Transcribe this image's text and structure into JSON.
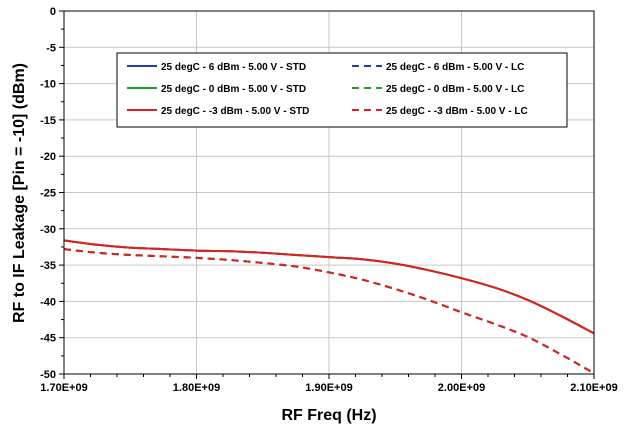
{
  "chart_data": {
    "type": "line",
    "xlabel": "RF Freq (Hz)",
    "ylabel": "RF to IF Leakage [Pin = -10] (dBm)",
    "xlim": [
      1700000000.0,
      2100000000.0
    ],
    "ylim": [
      -50,
      0
    ],
    "x_ticks": [
      {
        "value": 1700000000.0,
        "label": "1.70E+09"
      },
      {
        "value": 1800000000.0,
        "label": "1.80E+09"
      },
      {
        "value": 1900000000.0,
        "label": "1.90E+09"
      },
      {
        "value": 2000000000.0,
        "label": "2.00E+09"
      },
      {
        "value": 2100000000.0,
        "label": "2.10E+09"
      }
    ],
    "y_ticks": [
      {
        "value": 0,
        "label": "0"
      },
      {
        "value": -5,
        "label": "-5"
      },
      {
        "value": -10,
        "label": "-10"
      },
      {
        "value": -15,
        "label": "-15"
      },
      {
        "value": -20,
        "label": "-20"
      },
      {
        "value": -25,
        "label": "-25"
      },
      {
        "value": -30,
        "label": "-30"
      },
      {
        "value": -35,
        "label": "-35"
      },
      {
        "value": -40,
        "label": "-40"
      },
      {
        "value": -45,
        "label": "-45"
      },
      {
        "value": -50,
        "label": "-50"
      }
    ],
    "grid": true,
    "legend_position": "top-center",
    "x": [
      1700000000.0,
      1725000000.0,
      1750000000.0,
      1775000000.0,
      1800000000.0,
      1825000000.0,
      1850000000.0,
      1875000000.0,
      1900000000.0,
      1925000000.0,
      1950000000.0,
      1975000000.0,
      2000000000.0,
      2025000000.0,
      2050000000.0,
      2075000000.0,
      2100000000.0
    ],
    "series": [
      {
        "name": "25 degC - 6 dBm - 5.00 V - STD",
        "color": "#2040b0",
        "dash": "solid",
        "values": [
          -31.6,
          -32.2,
          -32.6,
          -32.8,
          -33.0,
          -33.1,
          -33.3,
          -33.6,
          -33.9,
          -34.2,
          -34.8,
          -35.7,
          -36.8,
          -38.1,
          -39.8,
          -42.0,
          -44.4
        ]
      },
      {
        "name": "25 degC - 6 dBm - 5.00 V - LC",
        "color": "#2040b0",
        "dash": "dashed",
        "values": [
          -32.8,
          -33.3,
          -33.6,
          -33.8,
          -34.0,
          -34.3,
          -34.7,
          -35.2,
          -36.0,
          -37.0,
          -38.3,
          -39.8,
          -41.5,
          -43.1,
          -44.9,
          -47.3,
          -49.9
        ]
      },
      {
        "name": "25 degC - 0 dBm - 5.00 V - STD",
        "color": "#20a020",
        "dash": "solid",
        "values": [
          -31.6,
          -32.2,
          -32.6,
          -32.8,
          -33.0,
          -33.1,
          -33.3,
          -33.6,
          -33.9,
          -34.2,
          -34.8,
          -35.7,
          -36.8,
          -38.1,
          -39.8,
          -42.0,
          -44.4
        ]
      },
      {
        "name": "25 degC - 0 dBm - 5.00 V - LC",
        "color": "#20a020",
        "dash": "dashed",
        "values": [
          -32.8,
          -33.3,
          -33.6,
          -33.8,
          -34.0,
          -34.3,
          -34.7,
          -35.2,
          -36.0,
          -37.0,
          -38.3,
          -39.8,
          -41.5,
          -43.1,
          -44.9,
          -47.3,
          -49.9
        ]
      },
      {
        "name": "25 degC - -3 dBm - 5.00 V - STD",
        "color": "#e02020",
        "dash": "solid",
        "values": [
          -31.6,
          -32.2,
          -32.6,
          -32.8,
          -33.0,
          -33.1,
          -33.3,
          -33.6,
          -33.9,
          -34.2,
          -34.8,
          -35.7,
          -36.8,
          -38.1,
          -39.8,
          -42.0,
          -44.4
        ]
      },
      {
        "name": "25 degC - -3 dBm - 5.00 V - LC",
        "color": "#e02020",
        "dash": "dashed",
        "values": [
          -32.8,
          -33.3,
          -33.6,
          -33.8,
          -34.0,
          -34.3,
          -34.7,
          -35.2,
          -36.0,
          -37.0,
          -38.3,
          -39.8,
          -41.5,
          -43.1,
          -44.9,
          -47.3,
          -49.9
        ]
      }
    ]
  }
}
